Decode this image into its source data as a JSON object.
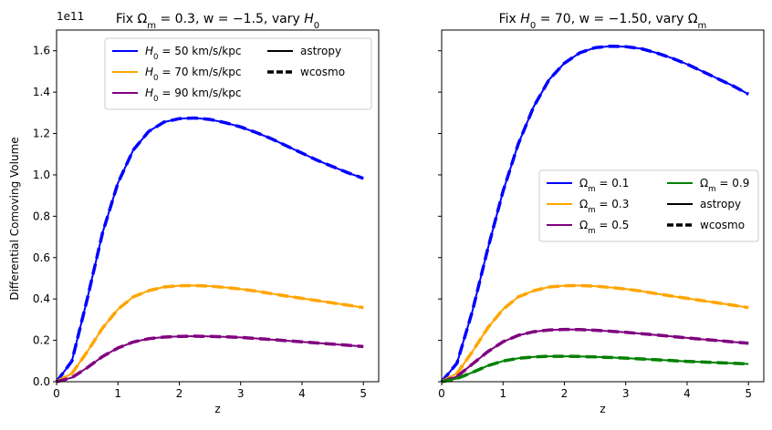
{
  "figure": {
    "y_scale_label": "1e11",
    "ylabel": "Differential Comoving Volume"
  },
  "colors": {
    "blue": "#0000ff",
    "orange": "#ffa500",
    "purple": "#800080",
    "green": "#008000",
    "black": "#000000"
  },
  "chart_data": [
    {
      "type": "line",
      "title": "Fix Ωm = 0.3, w = −1.5, vary H0",
      "xlabel": "z",
      "ylabel": "Differential Comoving Volume",
      "y_multiplier": 100000000000.0,
      "xlim": [
        0,
        5.25
      ],
      "ylim": [
        0,
        1.7
      ],
      "x_ticks": [
        0,
        1,
        2,
        3,
        4,
        5
      ],
      "y_ticks": [
        0.0,
        0.2,
        0.4,
        0.6,
        0.8,
        1.0,
        1.2,
        1.4,
        1.6
      ],
      "legend": {
        "placement": "top-center",
        "columns": 2,
        "entries": [
          {
            "label": "H0 = 50 km/s/kpc",
            "color": "#0000ff",
            "style": "solid"
          },
          {
            "label": "H0 = 70 km/s/kpc",
            "color": "#ffa500",
            "style": "solid"
          },
          {
            "label": "H0 = 90 km/s/kpc",
            "color": "#800080",
            "style": "solid"
          },
          {
            "label": "astropy",
            "color": "#000000",
            "style": "solid"
          },
          {
            "label": "wcosmo",
            "color": "#000000",
            "style": "dashed"
          }
        ]
      },
      "x": [
        0,
        0.25,
        0.5,
        0.75,
        1.0,
        1.25,
        1.5,
        1.75,
        2.0,
        2.25,
        2.5,
        2.75,
        3.0,
        3.25,
        3.5,
        3.75,
        4.0,
        4.25,
        4.5,
        4.75,
        5.0
      ],
      "series": [
        {
          "name": "H0 = 50 km/s/kpc",
          "color": "#0000ff",
          "values": [
            0.0,
            0.1,
            0.4,
            0.72,
            0.96,
            1.12,
            1.21,
            1.255,
            1.272,
            1.275,
            1.268,
            1.252,
            1.232,
            1.205,
            1.175,
            1.14,
            1.105,
            1.07,
            1.04,
            1.01,
            0.983
          ]
        },
        {
          "name": "H0 = 70 km/s/kpc",
          "color": "#ffa500",
          "values": [
            0.0,
            0.04,
            0.145,
            0.26,
            0.35,
            0.41,
            0.44,
            0.458,
            0.464,
            0.465,
            0.462,
            0.456,
            0.448,
            0.438,
            0.426,
            0.414,
            0.403,
            0.392,
            0.381,
            0.37,
            0.358
          ]
        },
        {
          "name": "H0 = 90 km/s/kpc",
          "color": "#800080",
          "values": [
            0.0,
            0.02,
            0.068,
            0.122,
            0.163,
            0.192,
            0.208,
            0.216,
            0.219,
            0.22,
            0.219,
            0.217,
            0.214,
            0.209,
            0.204,
            0.198,
            0.193,
            0.187,
            0.182,
            0.176,
            0.17
          ]
        }
      ]
    },
    {
      "type": "line",
      "title": "Fix H0 = 70, w = −1.50, vary Ωm",
      "xlabel": "z",
      "ylabel": "",
      "xlim": [
        0,
        5.25
      ],
      "ylim": [
        0,
        1.7
      ],
      "x_ticks": [
        0,
        1,
        2,
        3,
        4,
        5
      ],
      "legend": {
        "placement": "center-right",
        "columns": 2,
        "entries": [
          {
            "label": "Ωm = 0.1",
            "color": "#0000ff",
            "style": "solid"
          },
          {
            "label": "Ωm = 0.3",
            "color": "#ffa500",
            "style": "solid"
          },
          {
            "label": "Ωm = 0.5",
            "color": "#800080",
            "style": "solid"
          },
          {
            "label": "Ωm = 0.9",
            "color": "#008000",
            "style": "solid"
          },
          {
            "label": "astropy",
            "color": "#000000",
            "style": "solid"
          },
          {
            "label": "wcosmo",
            "color": "#000000",
            "style": "dashed"
          }
        ]
      },
      "x": [
        0,
        0.25,
        0.5,
        0.75,
        1.0,
        1.25,
        1.5,
        1.75,
        2.0,
        2.25,
        2.5,
        2.75,
        3.0,
        3.25,
        3.5,
        3.75,
        4.0,
        4.25,
        4.5,
        4.75,
        5.0
      ],
      "series": [
        {
          "name": "Ωm = 0.1",
          "color": "#0000ff",
          "values": [
            0.0,
            0.09,
            0.34,
            0.64,
            0.92,
            1.15,
            1.33,
            1.46,
            1.54,
            1.59,
            1.615,
            1.622,
            1.62,
            1.61,
            1.59,
            1.565,
            1.535,
            1.5,
            1.465,
            1.43,
            1.39
          ]
        },
        {
          "name": "Ωm = 0.3",
          "color": "#ffa500",
          "values": [
            0.0,
            0.04,
            0.145,
            0.26,
            0.35,
            0.41,
            0.44,
            0.458,
            0.464,
            0.465,
            0.462,
            0.456,
            0.448,
            0.438,
            0.426,
            0.414,
            0.403,
            0.392,
            0.381,
            0.37,
            0.358
          ]
        },
        {
          "name": "Ωm = 0.5",
          "color": "#800080",
          "values": [
            0.0,
            0.025,
            0.085,
            0.145,
            0.193,
            0.224,
            0.242,
            0.25,
            0.253,
            0.252,
            0.249,
            0.244,
            0.239,
            0.232,
            0.226,
            0.219,
            0.212,
            0.205,
            0.199,
            0.192,
            0.186
          ]
        },
        {
          "name": "Ωm = 0.9",
          "color": "#008000",
          "values": [
            0.0,
            0.015,
            0.045,
            0.077,
            0.1,
            0.113,
            0.12,
            0.123,
            0.123,
            0.122,
            0.12,
            0.117,
            0.114,
            0.11,
            0.106,
            0.102,
            0.098,
            0.095,
            0.092,
            0.089,
            0.086
          ]
        }
      ]
    }
  ]
}
